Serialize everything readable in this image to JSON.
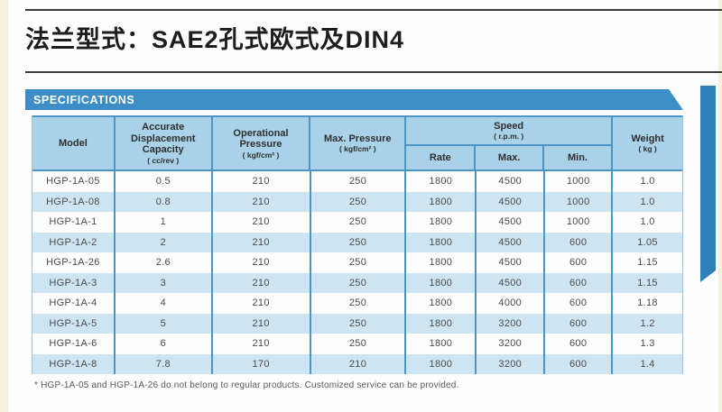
{
  "page": {
    "title": "法兰型式：SAE2孔式欧式及DIN4",
    "section_header": "SPECIFICATIONS",
    "footnote": "* HGP-1A-05 and HGP-1A-26 do not belong to regular products. Customized service can be provided."
  },
  "colors": {
    "accent_blue": "#3d8dc6",
    "side_bar_blue": "#2f7fba",
    "header_bg": "#a9d2e9",
    "row_alt_bg": "#cde4f3",
    "grid_line": "#4a96c6",
    "rule_dark": "#3c3c3c"
  },
  "chart_data": {
    "type": "table",
    "title": "SPECIFICATIONS",
    "columns": [
      {
        "label": "Model",
        "unit": ""
      },
      {
        "label": "Accurate Displacement Capacity",
        "unit": "( cc/rev )"
      },
      {
        "label": "Operational Pressure",
        "unit": "( kgf/cm² )"
      },
      {
        "label": "Max. Pressure",
        "unit": "( kgf/cm² )"
      },
      {
        "label": "Speed",
        "unit": "( r.p.m. )",
        "subcolumns": [
          "Rate",
          "Max.",
          "Min."
        ]
      },
      {
        "label": "Weight",
        "unit": "( kg )"
      }
    ],
    "rows": [
      {
        "model": "HGP-1A-05",
        "capacity": "0.5",
        "op_pressure": "210",
        "max_pressure": "250",
        "rate": "1800",
        "max": "4500",
        "min": "1000",
        "weight": "1.0"
      },
      {
        "model": "HGP-1A-08",
        "capacity": "0.8",
        "op_pressure": "210",
        "max_pressure": "250",
        "rate": "1800",
        "max": "4500",
        "min": "1000",
        "weight": "1.0"
      },
      {
        "model": "HGP-1A-1",
        "capacity": "1",
        "op_pressure": "210",
        "max_pressure": "250",
        "rate": "1800",
        "max": "4500",
        "min": "1000",
        "weight": "1.0"
      },
      {
        "model": "HGP-1A-2",
        "capacity": "2",
        "op_pressure": "210",
        "max_pressure": "250",
        "rate": "1800",
        "max": "4500",
        "min": "600",
        "weight": "1.05"
      },
      {
        "model": "HGP-1A-26",
        "capacity": "2.6",
        "op_pressure": "210",
        "max_pressure": "250",
        "rate": "1800",
        "max": "4500",
        "min": "600",
        "weight": "1.15"
      },
      {
        "model": "HGP-1A-3",
        "capacity": "3",
        "op_pressure": "210",
        "max_pressure": "250",
        "rate": "1800",
        "max": "4500",
        "min": "600",
        "weight": "1.15"
      },
      {
        "model": "HGP-1A-4",
        "capacity": "4",
        "op_pressure": "210",
        "max_pressure": "250",
        "rate": "1800",
        "max": "4000",
        "min": "600",
        "weight": "1.18"
      },
      {
        "model": "HGP-1A-5",
        "capacity": "5",
        "op_pressure": "210",
        "max_pressure": "250",
        "rate": "1800",
        "max": "3200",
        "min": "600",
        "weight": "1.2"
      },
      {
        "model": "HGP-1A-6",
        "capacity": "6",
        "op_pressure": "210",
        "max_pressure": "250",
        "rate": "1800",
        "max": "3200",
        "min": "600",
        "weight": "1.3"
      },
      {
        "model": "HGP-1A-8",
        "capacity": "7.8",
        "op_pressure": "170",
        "max_pressure": "210",
        "rate": "1800",
        "max": "3200",
        "min": "600",
        "weight": "1.4"
      }
    ]
  }
}
